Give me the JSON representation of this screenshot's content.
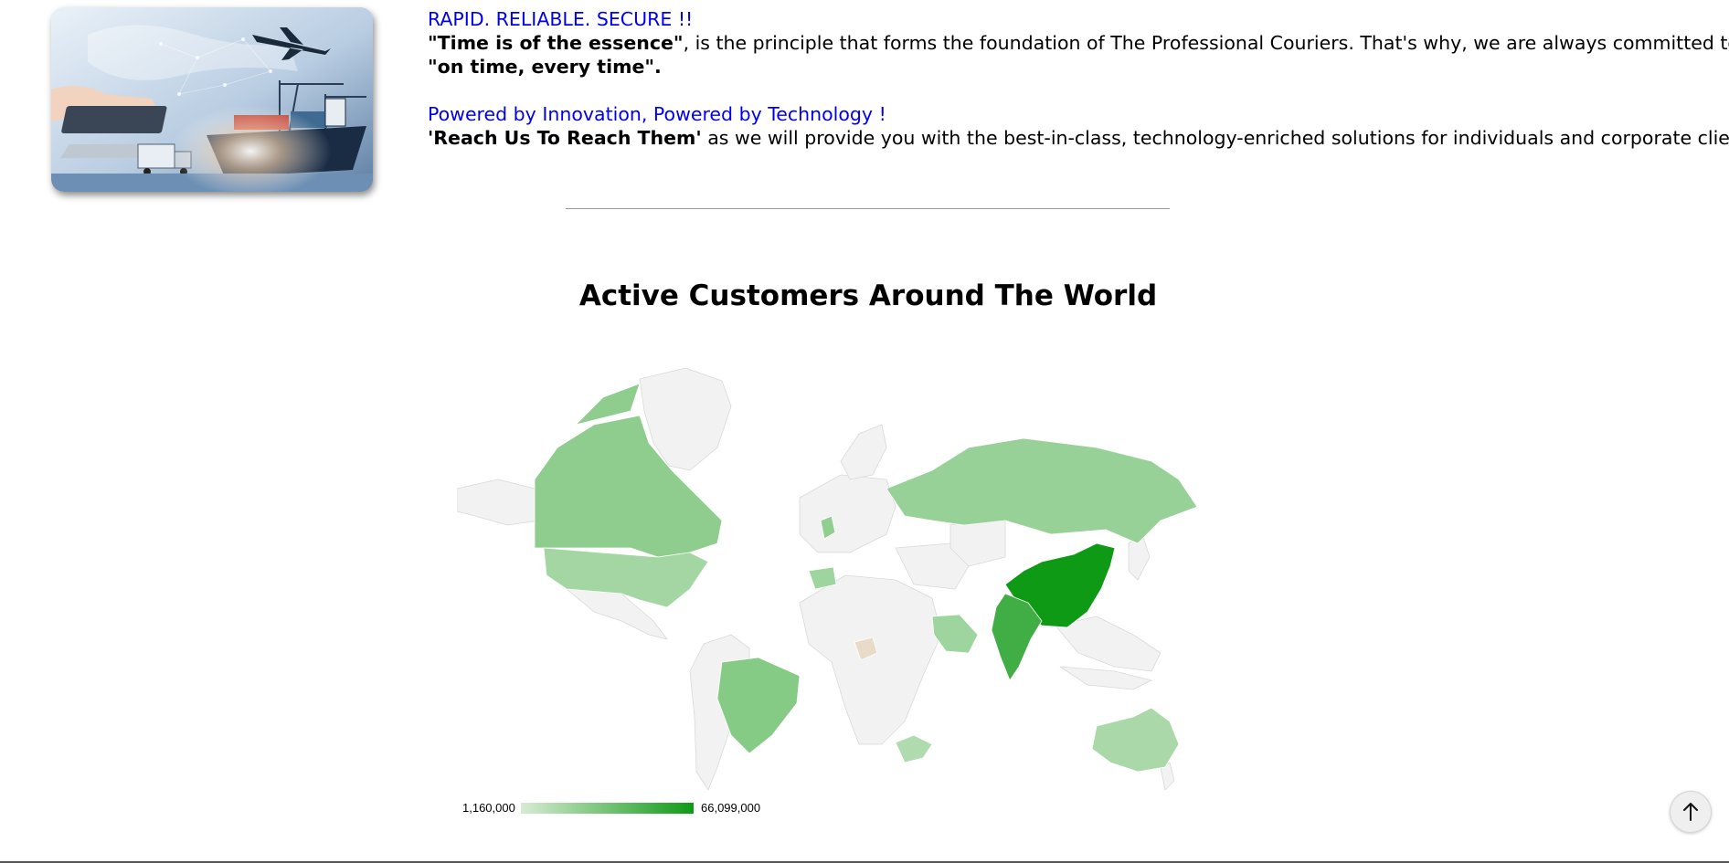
{
  "intro": {
    "tagline": "RAPID. RELIABLE. SECURE !!",
    "principle_bold": "\"Time is of the essence\"",
    "principle_rest": ", is the principle that forms the foundation of The Professional Couriers. That's why, we are always committed to being",
    "principle_line2": "\"on time, every time\".",
    "innovation": "Powered by Innovation, Powered by Technology !",
    "reach_bold": "'Reach Us To Reach Them'",
    "reach_rest": " as we will provide you with the best-in-class, technology-enriched solutions for individuals and corporate clients."
  },
  "map": {
    "title": "Active Customers Around The World",
    "legend_min": "1,160,000",
    "legend_max": "66,099,000",
    "colors": {
      "none": "#f2f2f2",
      "border": "#d9d9d9",
      "low": "#d8ebd4",
      "high": "#0f9a16",
      "nigeria": "#e8dcc8"
    }
  },
  "chart_data": {
    "type": "geo",
    "title": "Active Customers Around The World",
    "legend": {
      "min": 1160000,
      "max": 66099000
    },
    "values": [
      {
        "region": "China",
        "value": 66099000
      },
      {
        "region": "India",
        "value": 50000000
      },
      {
        "region": "Brazil",
        "value": 28000000
      },
      {
        "region": "Canada",
        "value": 25000000
      },
      {
        "region": "Russia",
        "value": 22000000
      },
      {
        "region": "United States",
        "value": 18000000
      },
      {
        "region": "Australia",
        "value": 16000000
      },
      {
        "region": "Saudi Arabia",
        "value": 20000000
      },
      {
        "region": "South Africa",
        "value": 14000000
      },
      {
        "region": "United Kingdom",
        "value": 24000000
      },
      {
        "region": "Spain",
        "value": 20000000
      },
      {
        "region": "Nigeria",
        "value": 1160000
      }
    ]
  },
  "icons": {
    "scroll_top": "arrow-up-icon"
  }
}
